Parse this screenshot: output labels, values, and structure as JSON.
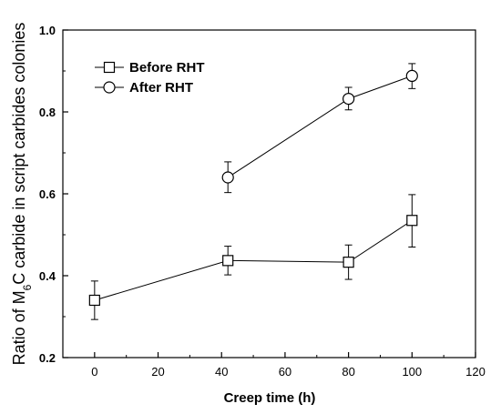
{
  "chart_data": {
    "type": "line",
    "title": "",
    "xlabel": "Creep time (h)",
    "ylabel": {
      "prefix": "Ratio of M",
      "subscript": "6",
      "suffix": "C carbide in script carbides colonies"
    },
    "xlim": [
      -10,
      120
    ],
    "ylim": [
      0.2,
      1.0
    ],
    "x_ticks": [
      "0",
      "20",
      "40",
      "60",
      "80",
      "100",
      "120"
    ],
    "y_ticks": [
      "0.2",
      "0.4",
      "0.6",
      "0.8",
      "1.0"
    ],
    "grid": false,
    "legend_placement": "top-left",
    "series": [
      {
        "name": "Before RHT",
        "marker": "square",
        "points": [
          {
            "x": 0,
            "y": 0.34,
            "err_low": 0.047,
            "err_high": 0.047
          },
          {
            "x": 42,
            "y": 0.437,
            "err_low": 0.035,
            "err_high": 0.035
          },
          {
            "x": 80,
            "y": 0.433,
            "err_low": 0.042,
            "err_high": 0.042
          },
          {
            "x": 100,
            "y": 0.535,
            "err_low": 0.065,
            "err_high": 0.063
          }
        ]
      },
      {
        "name": "After RHT",
        "marker": "circle",
        "points": [
          {
            "x": 42,
            "y": 0.64,
            "err_low": 0.037,
            "err_high": 0.038
          },
          {
            "x": 80,
            "y": 0.832,
            "err_low": 0.027,
            "err_high": 0.028
          },
          {
            "x": 100,
            "y": 0.888,
            "err_low": 0.031,
            "err_high": 0.03
          }
        ]
      }
    ]
  }
}
